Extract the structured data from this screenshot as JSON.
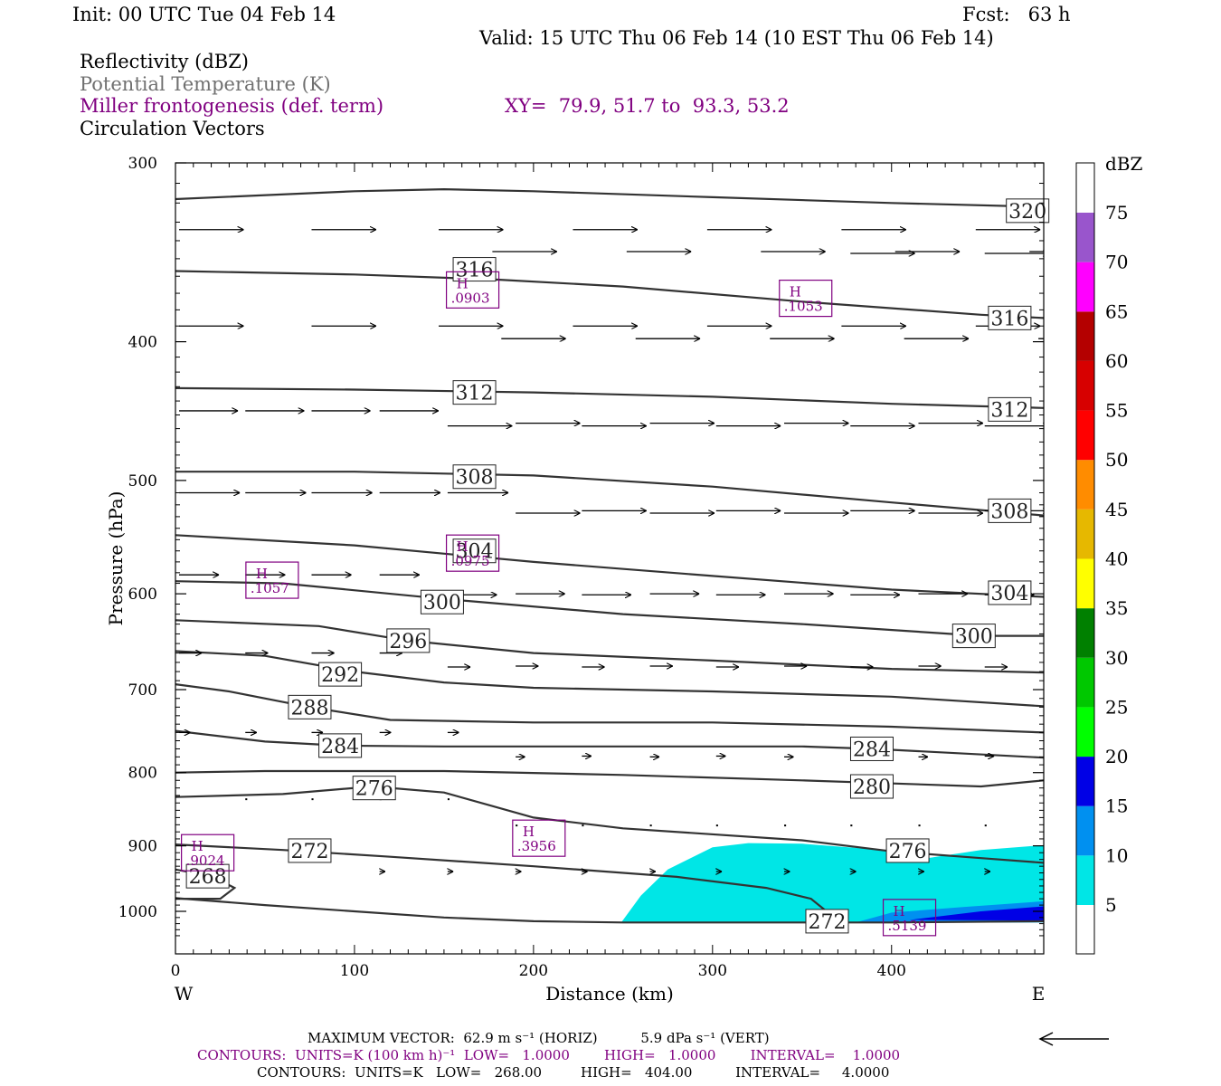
{
  "header": {
    "init": "Init: 00 UTC Tue 04 Feb 14",
    "fcst": "Fcst:   63 h",
    "valid": "Valid: 15 UTC Thu 06 Feb 14 (10 EST Thu 06 Feb 14)"
  },
  "fields": {
    "reflectivity": "Reflectivity (dBZ)",
    "theta": "Potential Temperature (K)",
    "frontogenesis": "Miller frontogenesis (def. term)",
    "xy": "XY=  79.9, 51.7 to  93.3, 53.2",
    "circulation": "Circulation Vectors"
  },
  "footer": {
    "maxvec": "MAXIMUM VECTOR:  62.9 m s⁻¹ (HORIZ)          5.9 dPa s⁻¹ (VERT)",
    "contours_fronto": "CONTOURS:  UNITS=K (100 km h)⁻¹  LOW=   1.0000        HIGH=   1.0000        INTERVAL=    1.0000",
    "contours_theta": "CONTOURS:  UNITS=K   LOW=   268.00         HIGH=   404.00          INTERVAL=     4.0000"
  },
  "colors": {
    "theta_line": "#333333",
    "fronto": "#800080",
    "refl_5": "#00e6e6",
    "refl_10": "#0090f0",
    "refl_15": "#0000e6"
  },
  "chart_data": {
    "type": "cross-section",
    "xlabel": "Distance (km)",
    "ylabel": "Pressure (hPa)",
    "xlim": [
      0,
      485
    ],
    "ylim": [
      1040,
      300
    ],
    "y_scale": "log",
    "x_ticks": [
      0,
      100,
      200,
      300,
      400
    ],
    "y_ticks": [
      300,
      400,
      500,
      600,
      700,
      800,
      900,
      1000
    ],
    "west_label": "W",
    "east_label": "E",
    "theta": [
      {
        "value": 320,
        "label": "320",
        "points": [
          [
            0,
            318
          ],
          [
            100,
            314
          ],
          [
            150,
            313
          ],
          [
            200,
            314
          ],
          [
            300,
            317
          ],
          [
            400,
            320
          ],
          [
            485,
            322
          ]
        ],
        "labels_at": [
          [
            476,
            324
          ]
        ]
      },
      {
        "value": 316,
        "label": "316",
        "points": [
          [
            0,
            357
          ],
          [
            100,
            359
          ],
          [
            180,
            362
          ],
          [
            250,
            366
          ],
          [
            350,
            375
          ],
          [
            450,
            383
          ],
          [
            485,
            385
          ]
        ],
        "labels_at": [
          [
            167,
            356
          ],
          [
            466,
            385
          ]
        ]
      },
      {
        "value": 312,
        "label": "312",
        "points": [
          [
            0,
            431
          ],
          [
            100,
            432
          ],
          [
            200,
            434
          ],
          [
            300,
            437
          ],
          [
            400,
            442
          ],
          [
            485,
            445
          ]
        ],
        "labels_at": [
          [
            167,
            434
          ],
          [
            466,
            446
          ]
        ]
      },
      {
        "value": 308,
        "label": "308",
        "points": [
          [
            0,
            493
          ],
          [
            100,
            493
          ],
          [
            200,
            496
          ],
          [
            300,
            505
          ],
          [
            400,
            518
          ],
          [
            485,
            529
          ]
        ],
        "labels_at": [
          [
            167,
            497
          ],
          [
            466,
            525
          ]
        ]
      },
      {
        "value": 304,
        "label": "304",
        "points": [
          [
            0,
            546
          ],
          [
            100,
            555
          ],
          [
            200,
            570
          ],
          [
            300,
            583
          ],
          [
            400,
            596
          ],
          [
            485,
            603
          ]
        ],
        "labels_at": [
          [
            167,
            560
          ],
          [
            466,
            599
          ]
        ]
      },
      {
        "value": 300,
        "label": "300",
        "points": [
          [
            0,
            588
          ],
          [
            60,
            590
          ],
          [
            150,
            605
          ],
          [
            250,
            620
          ],
          [
            350,
            630
          ],
          [
            450,
            642
          ],
          [
            485,
            642
          ]
        ],
        "labels_at": [
          [
            149,
            608
          ],
          [
            446,
            642
          ]
        ]
      },
      {
        "value": 296,
        "label": "296",
        "points": [
          [
            0,
            626
          ],
          [
            80,
            632
          ],
          [
            130,
            647
          ],
          [
            200,
            660
          ],
          [
            300,
            668
          ],
          [
            400,
            677
          ],
          [
            485,
            681
          ]
        ],
        "labels_at": [
          [
            130,
            647
          ]
        ]
      },
      {
        "value": 292,
        "label": "292",
        "points": [
          [
            0,
            658
          ],
          [
            50,
            663
          ],
          [
            100,
            680
          ],
          [
            150,
            692
          ],
          [
            200,
            698
          ],
          [
            300,
            702
          ],
          [
            400,
            708
          ],
          [
            485,
            719
          ]
        ],
        "labels_at": [
          [
            92,
            683
          ]
        ]
      },
      {
        "value": 288,
        "label": "288",
        "points": [
          [
            0,
            694
          ],
          [
            30,
            702
          ],
          [
            75,
            720
          ],
          [
            120,
            735
          ],
          [
            200,
            738
          ],
          [
            300,
            738
          ],
          [
            400,
            743
          ],
          [
            485,
            750
          ]
        ],
        "labels_at": [
          [
            75,
            720
          ]
        ]
      },
      {
        "value": 284,
        "label": "284",
        "points": [
          [
            0,
            748
          ],
          [
            50,
            761
          ],
          [
            92,
            766
          ],
          [
            150,
            767
          ],
          [
            250,
            767
          ],
          [
            350,
            767
          ],
          [
            390,
            770
          ],
          [
            485,
            781
          ]
        ],
        "labels_at": [
          [
            92,
            766
          ],
          [
            389,
            770
          ]
        ]
      },
      {
        "value": 280,
        "label": "280",
        "points": [
          [
            0,
            800
          ],
          [
            50,
            798
          ],
          [
            150,
            798
          ],
          [
            250,
            803
          ],
          [
            350,
            810
          ],
          [
            450,
            818
          ],
          [
            485,
            810
          ]
        ],
        "labels_at": [
          [
            389,
            818
          ]
        ]
      },
      {
        "value": 276,
        "label": "276",
        "points": [
          [
            0,
            832
          ],
          [
            60,
            828
          ],
          [
            110,
            818
          ],
          [
            150,
            826
          ],
          [
            200,
            860
          ],
          [
            250,
            875
          ],
          [
            350,
            892
          ],
          [
            400,
            908
          ],
          [
            450,
            918
          ],
          [
            485,
            925
          ]
        ],
        "labels_at": [
          [
            111,
            820
          ],
          [
            409,
            907
          ]
        ]
      },
      {
        "value": 272,
        "label": "272",
        "points": [
          [
            0,
            898
          ],
          [
            60,
            906
          ],
          [
            120,
            916
          ],
          [
            200,
            930
          ],
          [
            280,
            946
          ],
          [
            330,
            963
          ],
          [
            355,
            980
          ],
          [
            365,
            1003
          ],
          [
            365,
            1015
          ]
        ],
        "labels_at": [
          [
            75,
            907
          ],
          [
            364,
            1016
          ]
        ]
      },
      {
        "value": 268,
        "label": "268",
        "points": [
          [
            0,
            935
          ],
          [
            20,
            945
          ],
          [
            33,
            963
          ],
          [
            25,
            980
          ],
          [
            0,
            980
          ]
        ],
        "labels_at": [
          [
            18,
            945
          ]
        ]
      },
      {
        "value": 268,
        "label": "",
        "points": [
          [
            0,
            979
          ],
          [
            50,
            990
          ],
          [
            100,
            1000
          ],
          [
            150,
            1010
          ],
          [
            200,
            1016
          ],
          [
            250,
            1018
          ],
          [
            300,
            1018
          ],
          [
            400,
            1018
          ],
          [
            485,
            1016
          ]
        ],
        "labels_at": []
      }
    ],
    "frontogenesis_maxima": [
      {
        "label": "H",
        "value": ".0903",
        "x": 166,
        "p": 368
      },
      {
        "label": "H",
        "value": ".1053",
        "x": 352,
        "p": 373
      },
      {
        "label": "H",
        "value": ".0975",
        "x": 166,
        "p": 562
      },
      {
        "label": "H",
        "value": ".1057",
        "x": 54,
        "p": 587
      },
      {
        "label": "H",
        "value": ".3956",
        "x": 203,
        "p": 889
      },
      {
        "label": "H",
        "value": ".9024",
        "x": 18,
        "p": 910
      },
      {
        "label": "H",
        "value": ".5139",
        "x": 410,
        "p": 1010
      }
    ],
    "vectors": [
      {
        "p": 334,
        "x": [
          0,
          74,
          145,
          220,
          295,
          370,
          445
        ],
        "u": 34
      },
      {
        "p": 346,
        "x": [
          175,
          250,
          325,
          400,
          475
        ],
        "u": 34
      },
      {
        "p": 347,
        "x": [
          375,
          450
        ],
        "u": 34
      },
      {
        "p": 390,
        "x": [
          0,
          74,
          145,
          220,
          295,
          370,
          445
        ],
        "u": 34
      },
      {
        "p": 398,
        "x": [
          180,
          255,
          330,
          405,
          480
        ],
        "u": 34
      },
      {
        "p": 447,
        "x": [
          0,
          37,
          74,
          112
        ],
        "u": 31
      },
      {
        "p": 458,
        "x": [
          150,
          225,
          300,
          375,
          450
        ],
        "u": 34
      },
      {
        "p": 456,
        "x": [
          188,
          263,
          338,
          413
        ],
        "u": 34
      },
      {
        "p": 510,
        "x": [
          0,
          37,
          74,
          112,
          150
        ],
        "u": 32
      },
      {
        "p": 527,
        "x": [
          188,
          263,
          338,
          413
        ],
        "u": 34
      },
      {
        "p": 525,
        "x": [
          225,
          300,
          375,
          450
        ],
        "u": 34
      },
      {
        "p": 582,
        "x": [
          0,
          37,
          74,
          112
        ],
        "u": 21
      },
      {
        "p": 601,
        "x": [
          150,
          225,
          300,
          375,
          450
        ],
        "u": 26
      },
      {
        "p": 600,
        "x": [
          188,
          263,
          338,
          413
        ],
        "u": 26
      },
      {
        "p": 660,
        "x": [
          0,
          37,
          74,
          112
        ],
        "u": 12
      },
      {
        "p": 675,
        "x": [
          150,
          225,
          300,
          375,
          450
        ],
        "u": 12
      },
      {
        "p": 674,
        "x": [
          188,
          263,
          338,
          413
        ],
        "u": 12
      },
      {
        "p": 750,
        "x": [
          0,
          37,
          74,
          112,
          150
        ],
        "u": 6
      },
      {
        "p": 780,
        "x": [
          188,
          263,
          338,
          413
        ],
        "u": 5
      },
      {
        "p": 779,
        "x": [
          225,
          300,
          375,
          450
        ],
        "u": 5
      },
      {
        "p": 835,
        "x": [
          37,
          74,
          112,
          150
        ],
        "u": 1
      },
      {
        "p": 871,
        "x": [
          188,
          225,
          263,
          300,
          338,
          375,
          413,
          450
        ],
        "u": 1
      },
      {
        "p": 938,
        "x": [
          112,
          150,
          188,
          225,
          263,
          300,
          338,
          375,
          413,
          450
        ],
        "u": 3
      }
    ],
    "reflectivity": {
      "colorbar_title": "dBZ",
      "levels": [
        5,
        10,
        15,
        20,
        25,
        30,
        35,
        40,
        45,
        50,
        55,
        60,
        65,
        70,
        75
      ],
      "colors": [
        "#00e6e6",
        "#0090f0",
        "#0000e6",
        "#00ff00",
        "#00c800",
        "#008000",
        "#ffff00",
        "#e6b800",
        "#ff8c00",
        "#ff0000",
        "#d70000",
        "#b40000",
        "#ff00ff",
        "#9955cc"
      ],
      "areas": [
        {
          "level": 5,
          "points": [
            [
              249,
              1018
            ],
            [
              260,
              975
            ],
            [
              275,
              935
            ],
            [
              300,
              902
            ],
            [
              320,
              896
            ],
            [
              350,
              897
            ],
            [
              390,
              905
            ],
            [
              420,
              918
            ],
            [
              450,
              906
            ],
            [
              485,
              899
            ],
            [
              485,
              1018
            ]
          ]
        },
        {
          "level": 10,
          "points": [
            [
              380,
              1018
            ],
            [
              400,
              1002
            ],
            [
              440,
              993
            ],
            [
              485,
              984
            ],
            [
              485,
              1018
            ]
          ]
        },
        {
          "level": 15,
          "points": [
            [
              410,
              1014
            ],
            [
              450,
              1000
            ],
            [
              485,
              992
            ],
            [
              485,
              1015
            ]
          ]
        }
      ]
    }
  }
}
